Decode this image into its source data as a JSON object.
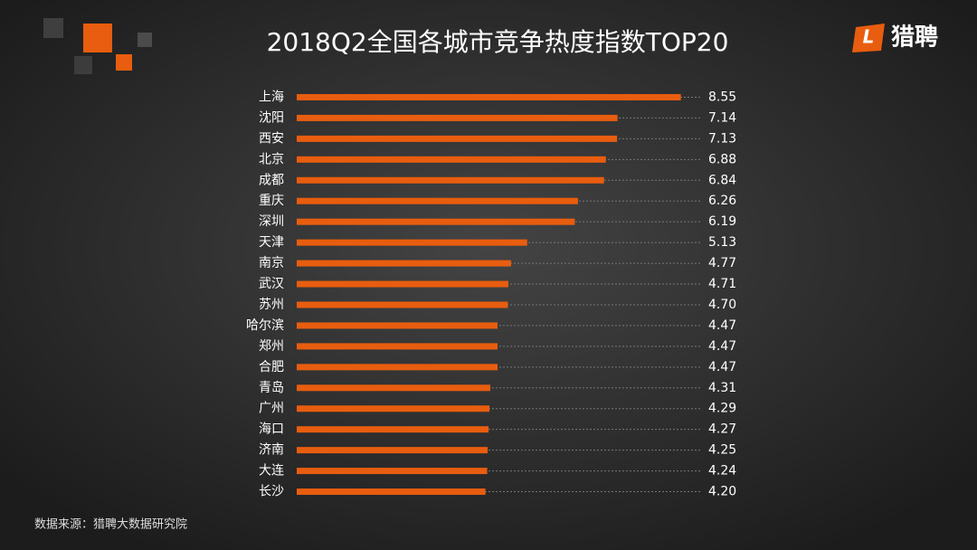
{
  "chart_data": {
    "type": "bar",
    "orientation": "horizontal",
    "title": "2018Q2全国各城市竞争热度指数TOP20",
    "categories": [
      "上海",
      "沈阳",
      "西安",
      "北京",
      "成都",
      "重庆",
      "深圳",
      "天津",
      "南京",
      "武汉",
      "苏州",
      "哈尔滨",
      "郑州",
      "合肥",
      "青岛",
      "广州",
      "海口",
      "济南",
      "大连",
      "长沙"
    ],
    "values": [
      8.55,
      7.14,
      7.13,
      6.88,
      6.84,
      6.26,
      6.19,
      5.13,
      4.77,
      4.71,
      4.7,
      4.47,
      4.47,
      4.47,
      4.31,
      4.29,
      4.27,
      4.25,
      4.24,
      4.2
    ],
    "value_labels": [
      "8.55",
      "7.14",
      "7.13",
      "6.88",
      "6.84",
      "6.26",
      "6.19",
      "5.13",
      "4.77",
      "4.71",
      "4.70",
      "4.47",
      "4.47",
      "4.47",
      "4.31",
      "4.29",
      "4.27",
      "4.25",
      "4.24",
      "4.20"
    ],
    "color": "#e85d0f",
    "xlim": [
      0,
      9
    ],
    "source": "数据来源：猎聘大数据研究院",
    "logo": "猎聘"
  }
}
